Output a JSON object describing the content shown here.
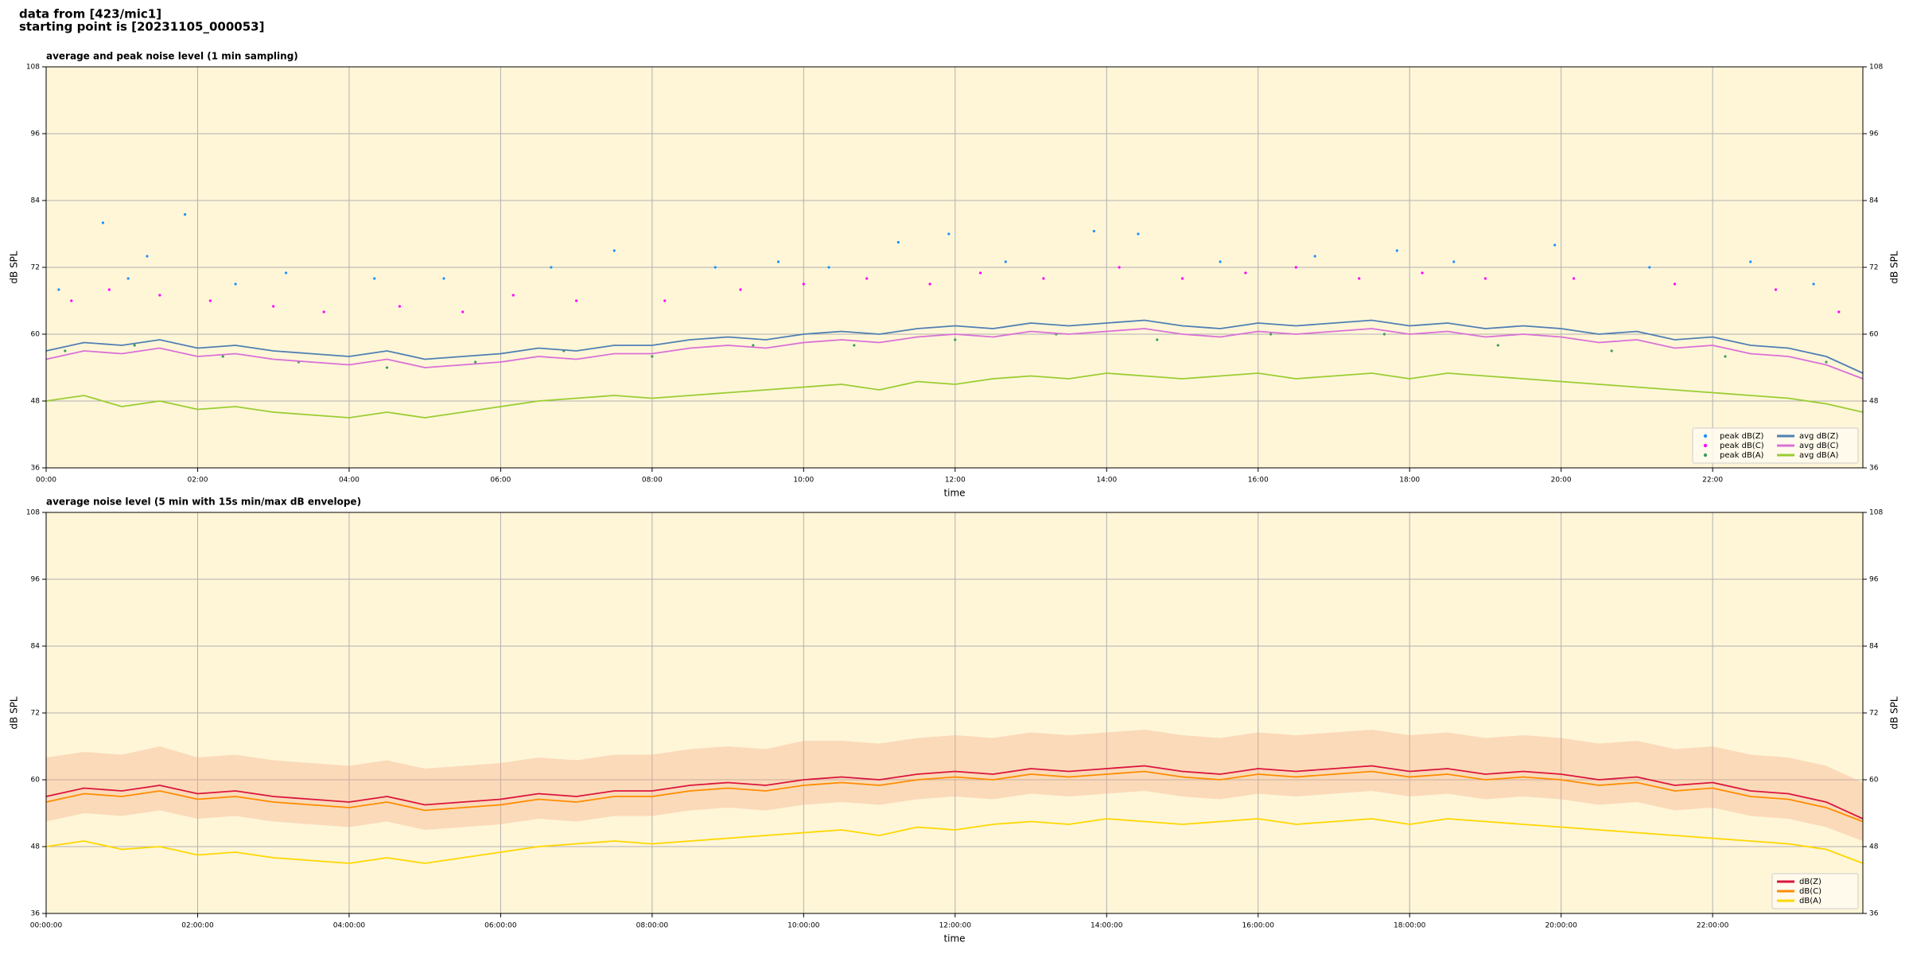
{
  "header": {
    "lines": [
      "data from [423/mic1]",
      "starting point is [20231105_000053]"
    ]
  },
  "chart_data": [
    {
      "type": "line",
      "title": "average and peak noise level (1 min sampling)",
      "xlabel": "time",
      "ylabel": "dB SPL",
      "background": "#fff6d8",
      "grid": true,
      "legend": "lower right",
      "legend_columns": 2,
      "xlim": [
        "00:00",
        "23:59"
      ],
      "xticks": [
        "00:00",
        "02:00",
        "04:00",
        "06:00",
        "08:00",
        "10:00",
        "12:00",
        "14:00",
        "16:00",
        "18:00",
        "20:00",
        "22:00"
      ],
      "ylim": [
        36,
        108
      ],
      "yticks": [
        36,
        48,
        60,
        72,
        84,
        96,
        108
      ],
      "x": [
        "00:00",
        "00:30",
        "01:00",
        "01:30",
        "02:00",
        "02:30",
        "03:00",
        "03:30",
        "04:00",
        "04:30",
        "05:00",
        "05:30",
        "06:00",
        "06:30",
        "07:00",
        "07:30",
        "08:00",
        "08:30",
        "09:00",
        "09:30",
        "10:00",
        "10:30",
        "11:00",
        "11:30",
        "12:00",
        "12:30",
        "13:00",
        "13:30",
        "14:00",
        "14:30",
        "15:00",
        "15:30",
        "16:00",
        "16:30",
        "17:00",
        "17:30",
        "18:00",
        "18:30",
        "19:00",
        "19:30",
        "20:00",
        "20:30",
        "21:00",
        "21:30",
        "22:00",
        "22:30",
        "23:00",
        "23:30",
        "23:59"
      ],
      "series": [
        {
          "name": "peak dB(Z)",
          "type": "scatter",
          "color": "#1e90ff",
          "x": [
            "00:10",
            "00:45",
            "01:05",
            "01:20",
            "01:50",
            "02:30",
            "03:10",
            "04:20",
            "05:15",
            "06:40",
            "07:30",
            "08:50",
            "09:40",
            "10:20",
            "11:15",
            "11:55",
            "12:40",
            "13:50",
            "14:25",
            "15:30",
            "16:45",
            "17:50",
            "18:35",
            "19:55",
            "21:10",
            "22:30",
            "23:20"
          ],
          "values": [
            68,
            80,
            70,
            74,
            81.5,
            69,
            71,
            70,
            70,
            72,
            75,
            72,
            73,
            72,
            76.5,
            78,
            73,
            78.5,
            78,
            73,
            74,
            75,
            73,
            76,
            72,
            73,
            69
          ]
        },
        {
          "name": "peak dB(C)",
          "type": "scatter",
          "color": "#ff00ff",
          "x": [
            "00:20",
            "00:50",
            "01:30",
            "02:10",
            "03:00",
            "03:40",
            "04:40",
            "05:30",
            "06:10",
            "07:00",
            "08:10",
            "09:10",
            "10:00",
            "10:50",
            "11:40",
            "12:20",
            "13:10",
            "14:10",
            "15:00",
            "15:50",
            "16:30",
            "17:20",
            "18:10",
            "19:00",
            "20:10",
            "21:30",
            "22:50",
            "23:40"
          ],
          "values": [
            66,
            68,
            67,
            66,
            65,
            64,
            65,
            64,
            67,
            66,
            66,
            68,
            69,
            70,
            69,
            71,
            70,
            72,
            70,
            71,
            72,
            70,
            71,
            70,
            70,
            69,
            68,
            64
          ]
        },
        {
          "name": "peak dB(A)",
          "type": "scatter",
          "color": "#3c9e5a",
          "x": [
            "00:15",
            "01:10",
            "02:20",
            "03:20",
            "04:30",
            "05:40",
            "06:50",
            "08:00",
            "09:20",
            "10:40",
            "12:00",
            "13:20",
            "14:40",
            "16:10",
            "17:40",
            "19:10",
            "20:40",
            "22:10",
            "23:30"
          ],
          "values": [
            57,
            58,
            56,
            55,
            54,
            55,
            57,
            56,
            58,
            58,
            59,
            60,
            59,
            60,
            60,
            58,
            57,
            56,
            55
          ]
        },
        {
          "name": "avg dB(Z)",
          "type": "line",
          "color": "#4f7fb3",
          "values": [
            57,
            58.5,
            58,
            59,
            57.5,
            58,
            57,
            56.5,
            56,
            57,
            55.5,
            56,
            56.5,
            57.5,
            57,
            58,
            58,
            59,
            59.5,
            59,
            60,
            60.5,
            60,
            61,
            61.5,
            61,
            62,
            61.5,
            62,
            62.5,
            61.5,
            61,
            62,
            61.5,
            62,
            62.5,
            61.5,
            62,
            61,
            61.5,
            61,
            60,
            60.5,
            59,
            59.5,
            58,
            57.5,
            56,
            53
          ]
        },
        {
          "name": "avg dB(C)",
          "type": "line",
          "color": "#da70d6",
          "values": [
            55.5,
            57,
            56.5,
            57.5,
            56,
            56.5,
            55.5,
            55,
            54.5,
            55.5,
            54,
            54.5,
            55,
            56,
            55.5,
            56.5,
            56.5,
            57.5,
            58,
            57.5,
            58.5,
            59,
            58.5,
            59.5,
            60,
            59.5,
            60.5,
            60,
            60.5,
            61,
            60,
            59.5,
            60.5,
            60,
            60.5,
            61,
            60,
            60.5,
            59.5,
            60,
            59.5,
            58.5,
            59,
            57.5,
            58,
            56.5,
            56,
            54.5,
            52
          ]
        },
        {
          "name": "avg dB(A)",
          "type": "line",
          "color": "#9acd32",
          "values": [
            48,
            49,
            47,
            48,
            46.5,
            47,
            46,
            45.5,
            45,
            46,
            45,
            46,
            47,
            48,
            48.5,
            49,
            48.5,
            49,
            49.5,
            50,
            50.5,
            51,
            50,
            51.5,
            51,
            52,
            52.5,
            52,
            53,
            52.5,
            52,
            52.5,
            53,
            52,
            52.5,
            53,
            52,
            53,
            52.5,
            52,
            51.5,
            51,
            50.5,
            50,
            49.5,
            49,
            48.5,
            47.5,
            46
          ]
        }
      ]
    },
    {
      "type": "line",
      "title": "average noise level (5 min with 15s min/max dB envelope)",
      "xlabel": "time",
      "ylabel": "dB SPL",
      "background": "#fff6d8",
      "grid": true,
      "legend": "lower right",
      "legend_columns": 1,
      "xlim": [
        "00:00:00",
        "23:59:00"
      ],
      "xticks": [
        "00:00:00",
        "02:00:00",
        "04:00:00",
        "06:00:00",
        "08:00:00",
        "10:00:00",
        "12:00:00",
        "14:00:00",
        "16:00:00",
        "18:00:00",
        "20:00:00",
        "22:00:00"
      ],
      "ylim": [
        36,
        108
      ],
      "yticks": [
        36,
        48,
        60,
        72,
        84,
        96,
        108
      ],
      "x": [
        "00:00:00",
        "00:30:00",
        "01:00:00",
        "01:30:00",
        "02:00:00",
        "02:30:00",
        "03:00:00",
        "03:30:00",
        "04:00:00",
        "04:30:00",
        "05:00:00",
        "05:30:00",
        "06:00:00",
        "06:30:00",
        "07:00:00",
        "07:30:00",
        "08:00:00",
        "08:30:00",
        "09:00:00",
        "09:30:00",
        "10:00:00",
        "10:30:00",
        "11:00:00",
        "11:30:00",
        "12:00:00",
        "12:30:00",
        "13:00:00",
        "13:30:00",
        "14:00:00",
        "14:30:00",
        "15:00:00",
        "15:30:00",
        "16:00:00",
        "16:30:00",
        "17:00:00",
        "17:30:00",
        "18:00:00",
        "18:30:00",
        "19:00:00",
        "19:30:00",
        "20:00:00",
        "20:30:00",
        "21:00:00",
        "21:30:00",
        "22:00:00",
        "22:30:00",
        "23:00:00",
        "23:30:00",
        "23:59:00"
      ],
      "envelope": {
        "color": "#f4a582",
        "high": [
          64,
          65,
          64.5,
          66,
          64,
          64.5,
          63.5,
          63,
          62.5,
          63.5,
          62,
          62.5,
          63,
          64,
          63.5,
          64.5,
          64.5,
          65.5,
          66,
          65.5,
          67,
          67,
          66.5,
          67.5,
          68,
          67.5,
          68.5,
          68,
          68.5,
          69,
          68,
          67.5,
          68.5,
          68,
          68.5,
          69,
          68,
          68.5,
          67.5,
          68,
          67.5,
          66.5,
          67,
          65.5,
          66,
          64.5,
          64,
          62.5,
          59.5
        ],
        "low": [
          52.5,
          54,
          53.5,
          54.5,
          53,
          53.5,
          52.5,
          52,
          51.5,
          52.5,
          51,
          51.5,
          52,
          53,
          52.5,
          53.5,
          53.5,
          54.5,
          55,
          54.5,
          55.5,
          56,
          55.5,
          56.5,
          57,
          56.5,
          57.5,
          57,
          57.5,
          58,
          57,
          56.5,
          57.5,
          57,
          57.5,
          58,
          57,
          57.5,
          56.5,
          57,
          56.5,
          55.5,
          56,
          54.5,
          55,
          53.5,
          53,
          51.5,
          49
        ]
      },
      "series": [
        {
          "name": "dB(Z)",
          "type": "line",
          "color": "#dc143c",
          "values": [
            57,
            58.5,
            58,
            59,
            57.5,
            58,
            57,
            56.5,
            56,
            57,
            55.5,
            56,
            56.5,
            57.5,
            57,
            58,
            58,
            59,
            59.5,
            59,
            60,
            60.5,
            60,
            61,
            61.5,
            61,
            62,
            61.5,
            62,
            62.5,
            61.5,
            61,
            62,
            61.5,
            62,
            62.5,
            61.5,
            62,
            61,
            61.5,
            61,
            60,
            60.5,
            59,
            59.5,
            58,
            57.5,
            56,
            53
          ]
        },
        {
          "name": "dB(C)",
          "type": "line",
          "color": "#ff8c00",
          "values": [
            56,
            57.5,
            57,
            58,
            56.5,
            57,
            56,
            55.5,
            55,
            56,
            54.5,
            55,
            55.5,
            56.5,
            56,
            57,
            57,
            58,
            58.5,
            58,
            59,
            59.5,
            59,
            60,
            60.5,
            60,
            61,
            60.5,
            61,
            61.5,
            60.5,
            60,
            61,
            60.5,
            61,
            61.5,
            60.5,
            61,
            60,
            60.5,
            60,
            59,
            59.5,
            58,
            58.5,
            57,
            56.5,
            55,
            52.5
          ]
        },
        {
          "name": "dB(A)",
          "type": "line",
          "color": "#ffd700",
          "values": [
            48,
            49,
            47.5,
            48,
            46.5,
            47,
            46,
            45.5,
            45,
            46,
            45,
            46,
            47,
            48,
            48.5,
            49,
            48.5,
            49,
            49.5,
            50,
            50.5,
            51,
            50,
            51.5,
            51,
            52,
            52.5,
            52,
            53,
            52.5,
            52,
            52.5,
            53,
            52,
            52.5,
            53,
            52,
            53,
            52.5,
            52,
            51.5,
            51,
            50.5,
            50,
            49.5,
            49,
            48.5,
            47.5,
            45
          ]
        }
      ]
    }
  ]
}
